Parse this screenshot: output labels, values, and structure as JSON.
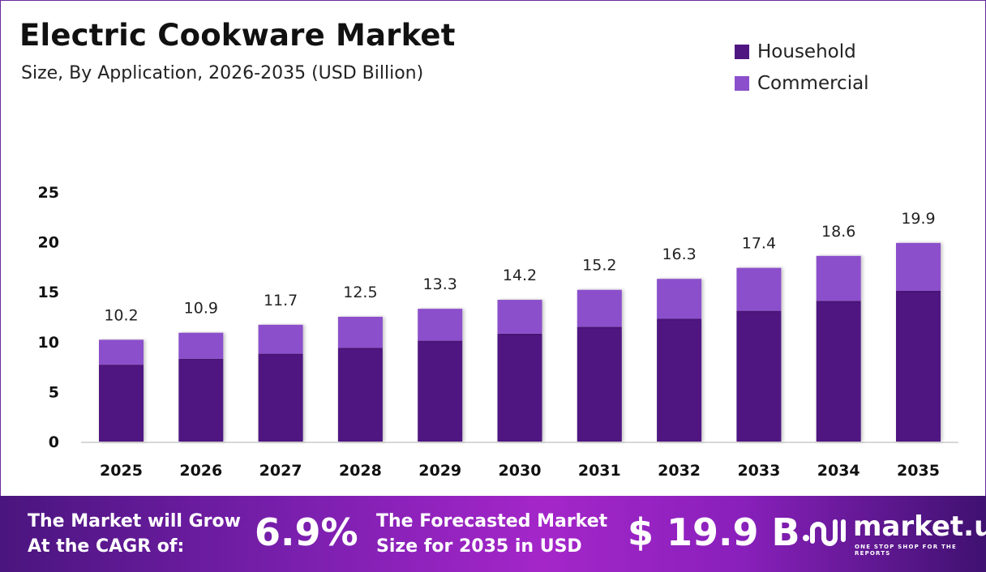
{
  "header": {
    "title": "Electric Cookware Market",
    "subtitle": "Size, By Application, 2026-2035 (USD Billion)"
  },
  "chart_data": {
    "type": "bar",
    "stacked": true,
    "categories": [
      "2025",
      "2026",
      "2027",
      "2028",
      "2029",
      "2030",
      "2031",
      "2032",
      "2033",
      "2034",
      "2035"
    ],
    "series": [
      {
        "name": "Household",
        "color": "#4f1681",
        "values": [
          7.7,
          8.3,
          8.8,
          9.4,
          10.1,
          10.8,
          11.5,
          12.3,
          13.1,
          14.1,
          15.1
        ]
      },
      {
        "name": "Commercial",
        "color": "#8c4fcb",
        "values": [
          2.5,
          2.6,
          2.9,
          3.1,
          3.2,
          3.4,
          3.7,
          4.0,
          4.3,
          4.5,
          4.8
        ]
      }
    ],
    "totals": [
      "10.2",
      "10.9",
      "11.7",
      "12.5",
      "13.3",
      "14.2",
      "15.2",
      "16.3",
      "17.4",
      "18.6",
      "19.9"
    ],
    "yticks": [
      "0",
      "5",
      "10",
      "15",
      "20",
      "25"
    ],
    "ylim": [
      0,
      25
    ],
    "grid": false,
    "legend": "top-right"
  },
  "footer": {
    "cagr_line1": "The Market will Grow",
    "cagr_line2": "At the CAGR of:",
    "cagr_value": "6.9%",
    "forecast_line1": "The Forecasted Market",
    "forecast_line2": "Size for 2035 in USD",
    "forecast_value": "$ 19.9 B",
    "logo_name": "market.us",
    "logo_tagline": "ONE STOP SHOP FOR THE REPORTS"
  }
}
